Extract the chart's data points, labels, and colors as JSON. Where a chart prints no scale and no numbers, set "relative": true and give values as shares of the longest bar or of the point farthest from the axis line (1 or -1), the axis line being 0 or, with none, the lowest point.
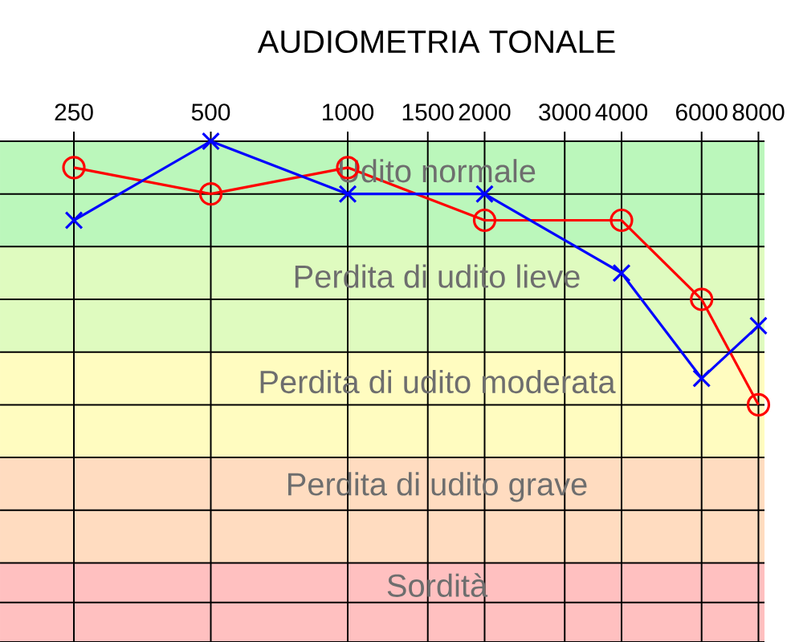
{
  "chart_data": {
    "type": "line",
    "title": "AUDIOMETRIA TONALE",
    "relative": true,
    "log": "x",
    "grid": true,
    "line_style": "solid",
    "x": [
      250,
      500,
      1000,
      2000,
      4000,
      6000,
      8000
    ],
    "xlim": [
      172,
      8250
    ],
    "xticks": [
      250,
      500,
      1000,
      1500,
      2000,
      3000,
      4000,
      6000,
      8000
    ],
    "series": [
      {
        "color": "#ff0000",
        "marker": "circle",
        "values": [
          -0.1,
          -0.2,
          -0.1,
          -0.3,
          -0.3,
          -0.6,
          -1.0
        ]
      },
      {
        "color": "#0000ff",
        "marker": "cross",
        "values": [
          -0.3,
          0,
          -0.2,
          -0.2,
          -0.5,
          -0.9,
          -0.7
        ]
      }
    ],
    "bands": [
      {
        "axis": "y",
        "from": -0.4,
        "to": 0,
        "label": "Udito normale",
        "color": "#bbf7bb"
      },
      {
        "axis": "y",
        "from": -0.8,
        "to": -0.4,
        "label": "Perdita di udito lieve",
        "color": "#dffbbf"
      },
      {
        "axis": "y",
        "from": -1.2,
        "to": -0.8,
        "label": "Perdita di udito moderata",
        "color": "#fffcc0"
      },
      {
        "axis": "y",
        "from": -1.6,
        "to": -1.2,
        "label": "Perdita di udito grave",
        "color": "#ffdcc0"
      },
      {
        "axis": "y",
        "from": -1.9,
        "to": -1.6,
        "label": "Sordità",
        "color": "#ffc0c0"
      }
    ]
  }
}
